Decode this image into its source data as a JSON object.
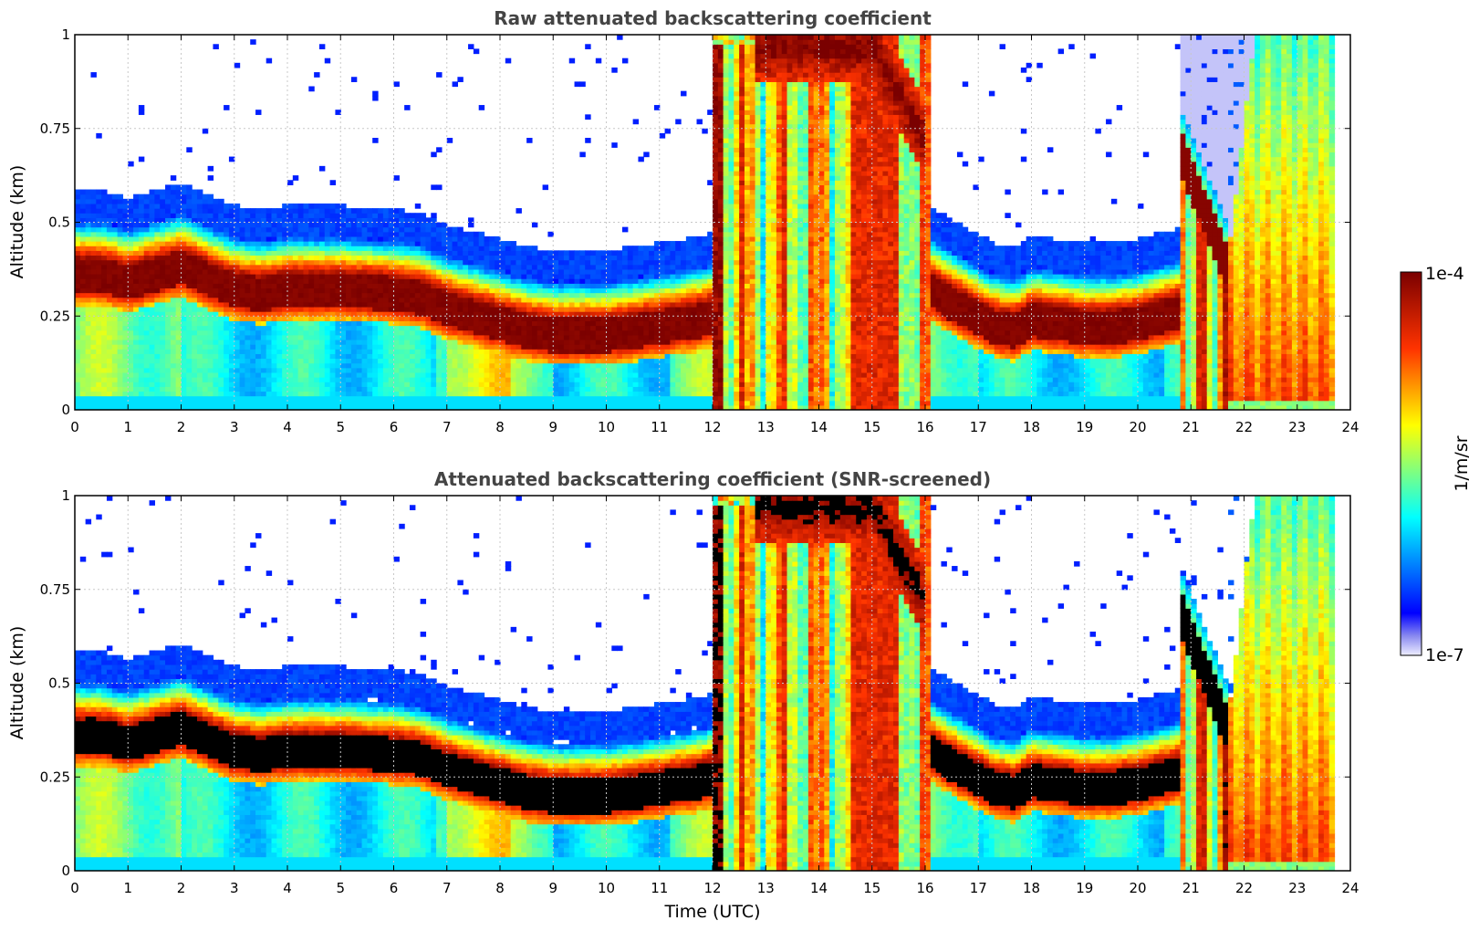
{
  "chart_data": [
    {
      "type": "heatmap",
      "title": "Raw attenuated backscattering coefficient",
      "xlabel": "",
      "ylabel": "Altitude (km)",
      "xlim": [
        0,
        24
      ],
      "ylim": [
        0,
        1
      ],
      "x_ticks": [
        "0",
        "1",
        "2",
        "3",
        "4",
        "5",
        "6",
        "7",
        "8",
        "9",
        "10",
        "11",
        "12",
        "13",
        "14",
        "15",
        "16",
        "17",
        "18",
        "19",
        "20",
        "21",
        "22",
        "23",
        "24"
      ],
      "y_ticks": [
        "0",
        "0.25",
        "0.5",
        "0.75",
        "1"
      ],
      "grid": true,
      "screened": false
    },
    {
      "type": "heatmap",
      "title": "Attenuated backscattering coefficient (SNR-screened)",
      "xlabel": "Time (UTC)",
      "ylabel": "Altitude (km)",
      "xlim": [
        0,
        24
      ],
      "ylim": [
        0,
        1
      ],
      "x_ticks": [
        "0",
        "1",
        "2",
        "3",
        "4",
        "5",
        "6",
        "7",
        "8",
        "9",
        "10",
        "11",
        "12",
        "13",
        "14",
        "15",
        "16",
        "17",
        "18",
        "19",
        "20",
        "21",
        "22",
        "23",
        "24"
      ],
      "y_ticks": [
        "0",
        "0.25",
        "0.5",
        "0.75",
        "1"
      ],
      "grid": true,
      "screened": true
    }
  ],
  "colorbar": {
    "label": "1/m/sr",
    "max_label": "1e-4",
    "min_label": "1e-7",
    "scale": "log",
    "range": [
      1e-07,
      0.0001
    ]
  },
  "layer_profile": {
    "description": "aerosol/boundary layer center altitude (km) vs time (UTC)",
    "time": [
      0,
      0.5,
      1,
      1.5,
      2,
      2.5,
      3,
      3.5,
      4,
      5,
      6,
      6.5,
      7,
      7.5,
      8,
      8.5,
      9,
      10,
      11,
      11.8,
      12,
      16,
      16.3,
      16.8,
      17.3,
      17.7,
      18,
      18.5,
      19,
      19.5,
      20,
      20.5,
      20.8
    ],
    "center": [
      0.36,
      0.36,
      0.34,
      0.36,
      0.38,
      0.35,
      0.32,
      0.31,
      0.32,
      0.32,
      0.31,
      0.3,
      0.27,
      0.25,
      0.23,
      0.21,
      0.2,
      0.2,
      0.22,
      0.24,
      0.25,
      0.33,
      0.3,
      0.26,
      0.22,
      0.21,
      0.24,
      0.23,
      0.22,
      0.22,
      0.23,
      0.25,
      0.26
    ]
  }
}
